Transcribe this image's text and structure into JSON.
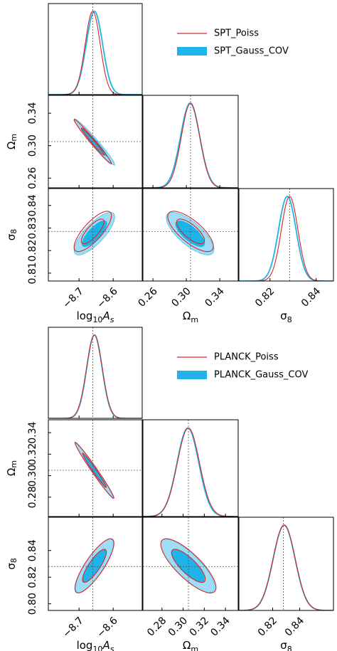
{
  "chart_data": [
    {
      "type": "triangle",
      "parameters": [
        {
          "key": "logAs",
          "label_main": "log",
          "label_sub": "10",
          "label_var": "A",
          "label_var_sub": "s",
          "range": [
            -8.79,
            -8.515
          ],
          "ticks": [
            -8.7,
            -8.6
          ],
          "tick_labels": [
            "−8.7",
            "−8.6"
          ],
          "truth": -8.66
        },
        {
          "key": "om",
          "label_main": "Ω",
          "label_sub": "m",
          "range": [
            0.248,
            0.362
          ],
          "ticks": [
            0.26,
            0.3,
            0.34
          ],
          "tick_labels": [
            "0.26",
            "0.30",
            "0.34"
          ],
          "truth": 0.305
        },
        {
          "key": "s8",
          "label_main": "σ",
          "label_sub": "8",
          "range": [
            0.8065,
            0.8475
          ],
          "ticks": [
            0.81,
            0.82,
            0.83,
            0.84
          ],
          "tick_labels": [
            "0.81",
            "0.82",
            "0.83",
            "0.84"
          ],
          "x_ticks": [
            0.82,
            0.84
          ],
          "x_tick_labels": [
            "0.82",
            "0.84"
          ],
          "truth": 0.8285
        }
      ],
      "legend": {
        "placement": "top-right",
        "entries": [
          "SPT_Poiss",
          "SPT_Gauss_COV"
        ]
      },
      "series": [
        {
          "name": "SPT_Poiss",
          "style": "line",
          "color": "#d62728",
          "mean": [
            -8.66,
            0.305,
            0.8285
          ],
          "sigma": [
            0.022,
            0.011,
            0.0036
          ],
          "corr": [
            [
              1,
              -0.985,
              0.78
            ],
            [
              -0.985,
              1,
              -0.74
            ],
            [
              0.78,
              -0.74,
              1
            ]
          ]
        },
        {
          "name": "SPT_Gauss_COV",
          "style": "filled",
          "color": "#1eb4ea",
          "light": "#9fdcf5",
          "mean": [
            -8.655,
            0.3045,
            0.8275
          ],
          "sigma": [
            0.024,
            0.0115,
            0.0038
          ],
          "corr": [
            [
              1,
              -0.975,
              0.78
            ],
            [
              -0.975,
              1,
              -0.74
            ],
            [
              0.78,
              -0.74,
              1
            ]
          ]
        }
      ]
    },
    {
      "type": "triangle",
      "parameters": [
        {
          "key": "logAs",
          "label_main": "log",
          "label_sub": "10",
          "label_var": "A",
          "label_var_sub": "s",
          "range": [
            -8.79,
            -8.515
          ],
          "ticks": [
            -8.7,
            -8.6
          ],
          "tick_labels": [
            "−8.7",
            "−8.6"
          ],
          "truth": -8.66
        },
        {
          "key": "om",
          "label_main": "Ω",
          "label_sub": "m",
          "range": [
            0.262,
            0.352
          ],
          "ticks": [
            0.28,
            0.3,
            0.32,
            0.34
          ],
          "tick_labels": [
            "0.28",
            "0.30",
            "0.32",
            "0.34"
          ],
          "truth": 0.305
        },
        {
          "key": "s8",
          "label_main": "σ",
          "label_sub": "8",
          "range": [
            0.795,
            0.865
          ],
          "ticks": [
            0.8,
            0.82,
            0.84
          ],
          "tick_labels": [
            "0.80",
            "0.82",
            "0.84"
          ],
          "x_ticks": [
            0.82,
            0.84
          ],
          "x_tick_labels": [
            "0.82",
            "0.84"
          ],
          "truth": 0.828
        }
      ],
      "legend": {
        "placement": "top-right",
        "entries": [
          "PLANCK_Poiss",
          "PLANCK_Gauss_COV"
        ]
      },
      "series": [
        {
          "name": "PLANCK_Poiss",
          "style": "line",
          "color": "#d62728",
          "mean": [
            -8.655,
            0.305,
            0.8285
          ],
          "sigma": [
            0.023,
            0.0105,
            0.0082
          ],
          "corr": [
            [
              1,
              -0.985,
              0.83
            ],
            [
              -0.985,
              1,
              -0.8
            ],
            [
              0.83,
              -0.8,
              1
            ]
          ]
        },
        {
          "name": "PLANCK_Gauss_COV",
          "style": "filled",
          "color": "#1eb4ea",
          "light": "#9fdcf5",
          "mean": [
            -8.655,
            0.3045,
            0.8285
          ],
          "sigma": [
            0.0225,
            0.0103,
            0.0081
          ],
          "corr": [
            [
              1,
              -0.985,
              0.83
            ],
            [
              -0.985,
              1,
              -0.8
            ],
            [
              0.83,
              -0.8,
              1
            ]
          ]
        }
      ]
    }
  ]
}
